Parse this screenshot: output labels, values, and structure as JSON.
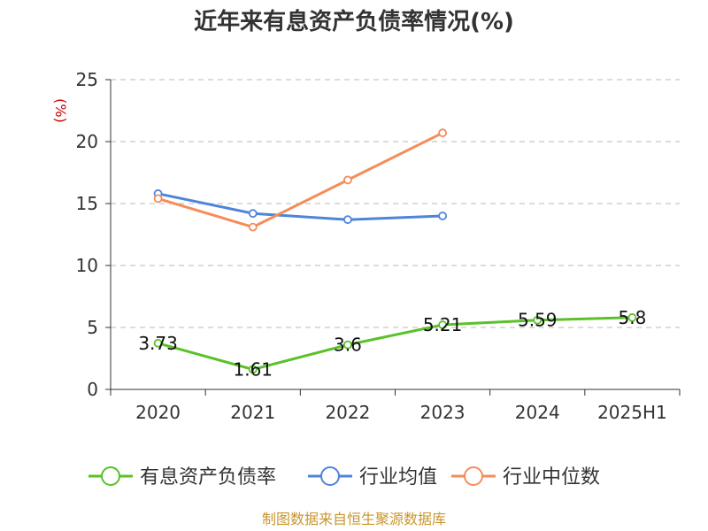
{
  "chart_data": {
    "type": "line",
    "title": "近年来有息资产负债率情况(%)",
    "ylabel": "(%)",
    "xlabel": "",
    "categories": [
      "2020",
      "2021",
      "2022",
      "2023",
      "2024",
      "2025H1"
    ],
    "ylim": [
      0,
      25
    ],
    "yticks": [
      0,
      5,
      10,
      15,
      20,
      25
    ],
    "grid": true,
    "legend_position": "bottom",
    "series": [
      {
        "name": "有息资产负债率",
        "color": "#5ac12a",
        "values": [
          3.73,
          1.61,
          3.6,
          5.21,
          5.59,
          5.8
        ],
        "labels": [
          "3.73",
          "1.61",
          "3.6",
          "5.21",
          "5.59",
          "5.8"
        ]
      },
      {
        "name": "行业均值",
        "color": "#4e84db",
        "values": [
          15.8,
          14.2,
          13.7,
          14.0,
          null,
          null
        ]
      },
      {
        "name": "行业中位数",
        "color": "#f58c5a",
        "values": [
          15.4,
          13.1,
          16.9,
          20.7,
          null,
          null
        ]
      }
    ],
    "source": "制图数据来自恒生聚源数据库"
  }
}
